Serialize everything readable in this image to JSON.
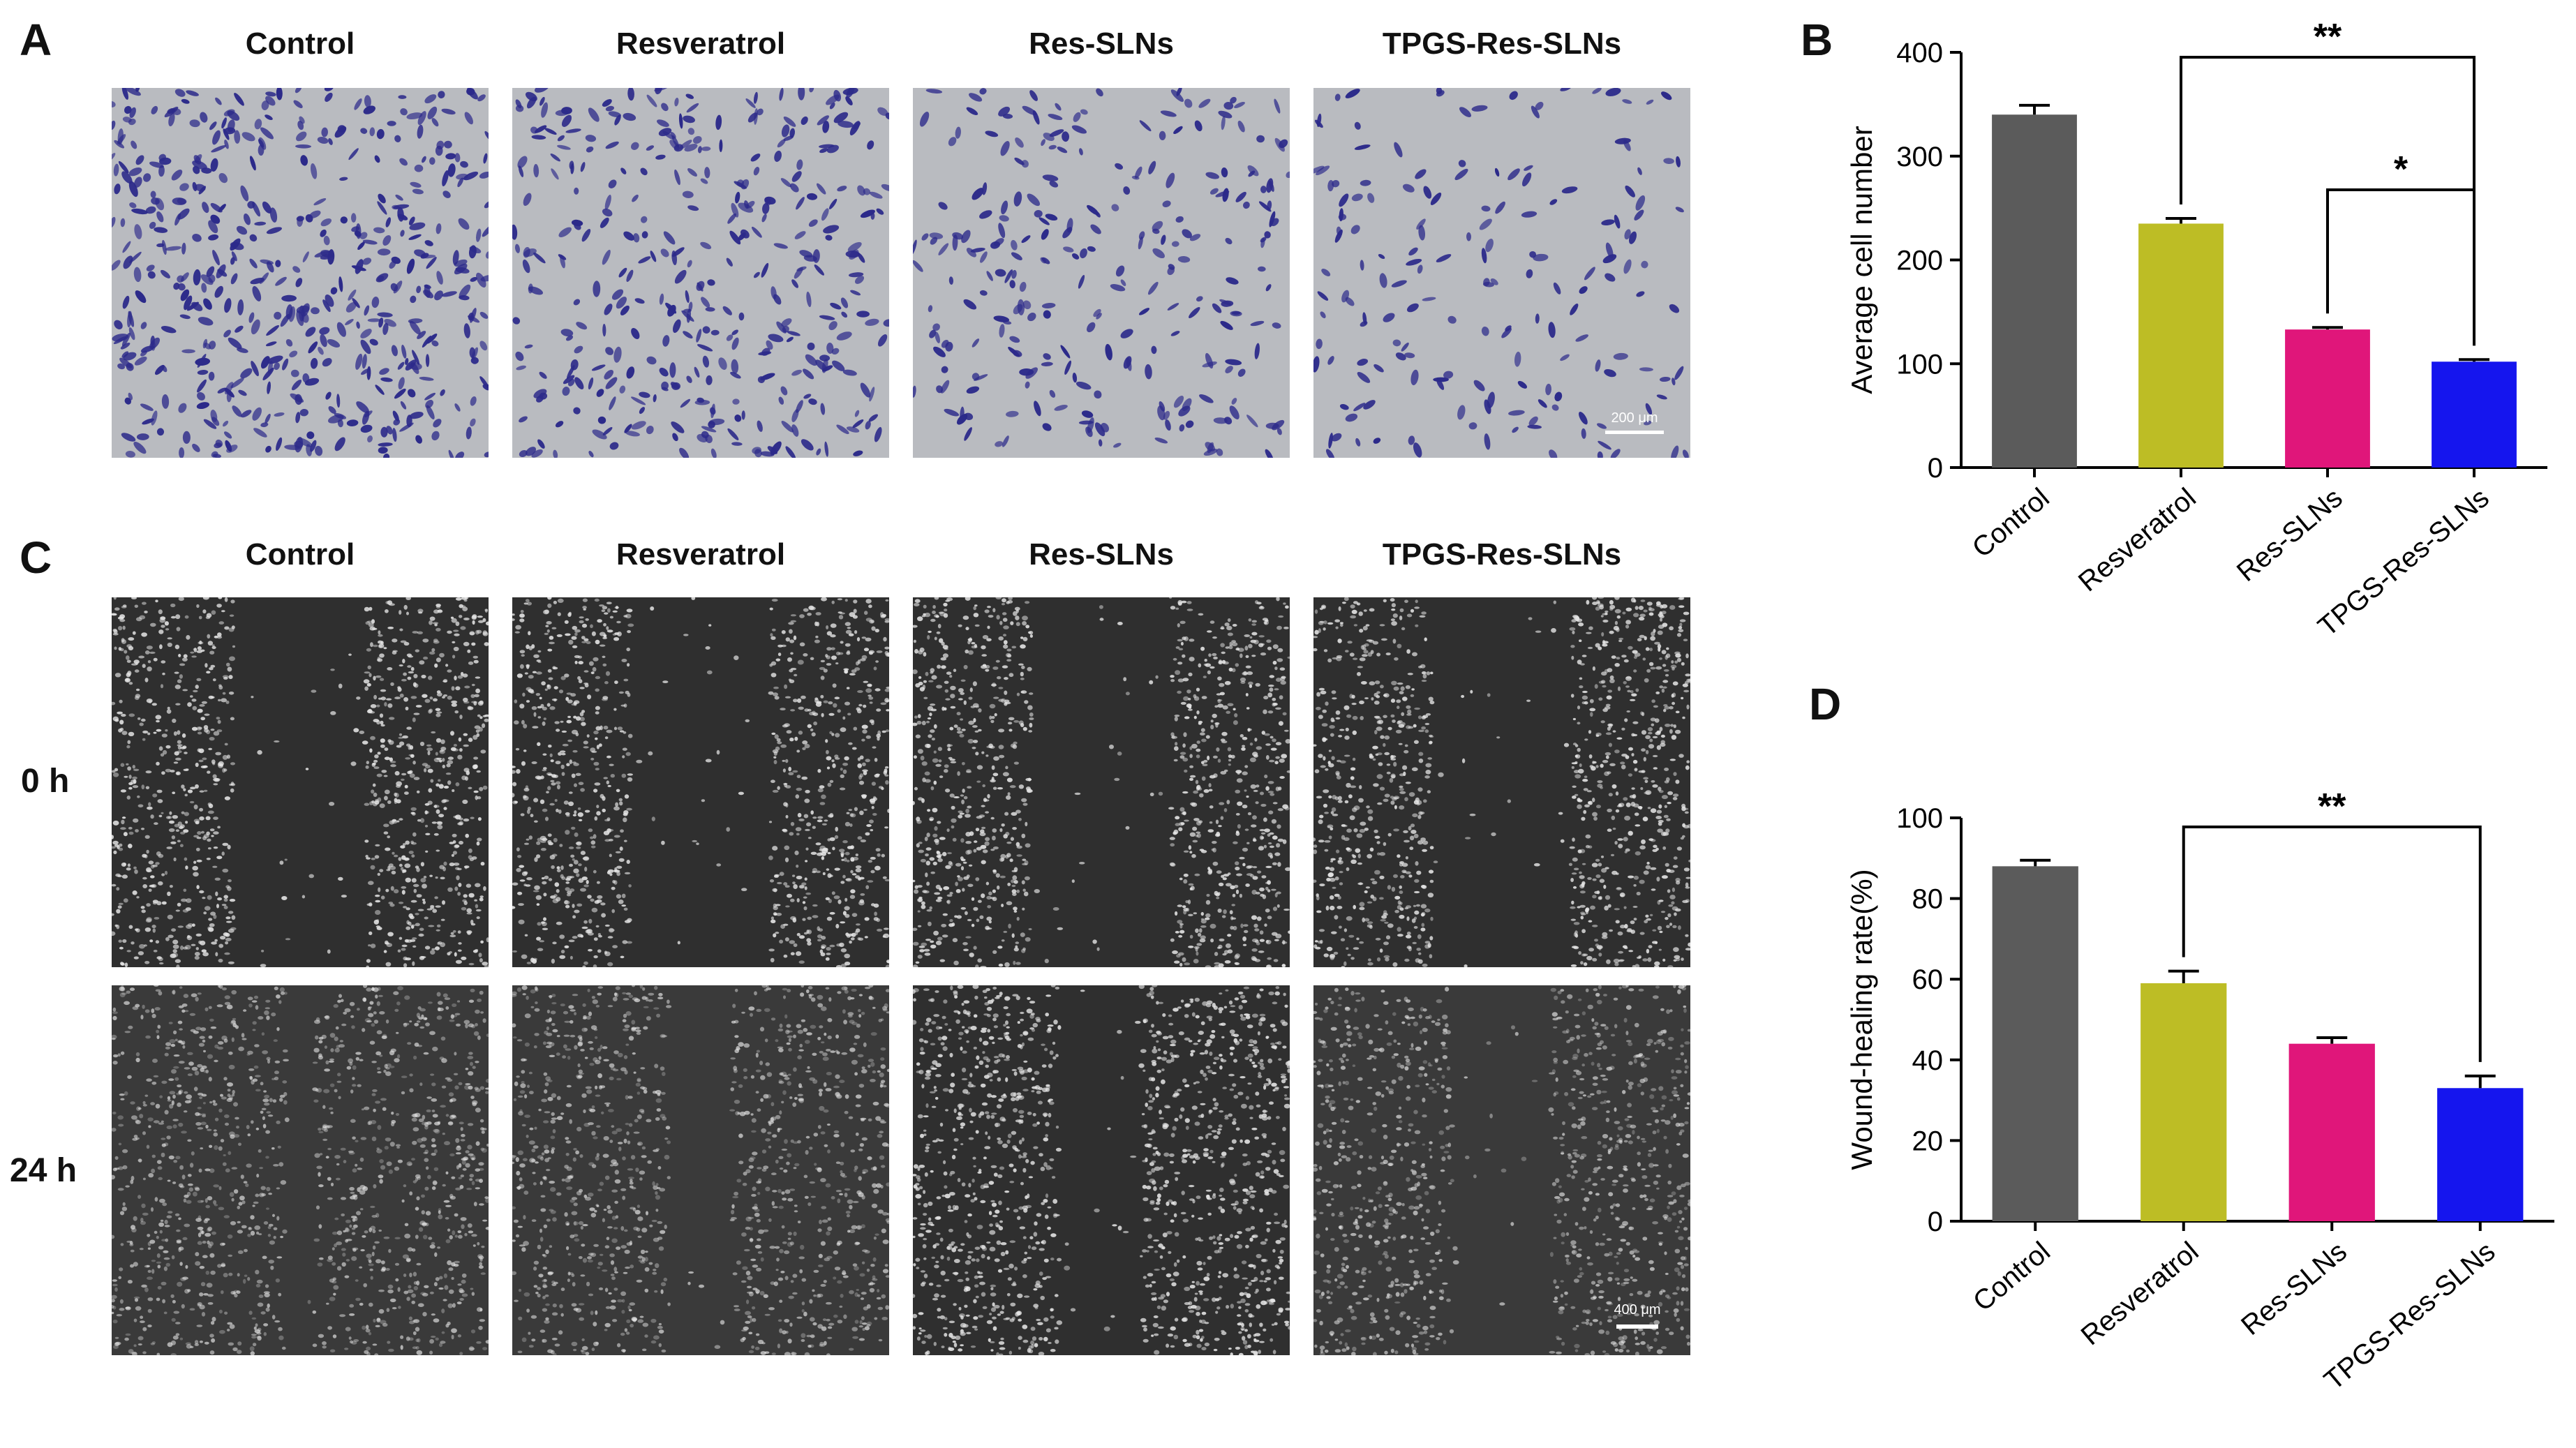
{
  "panels": {
    "a": {
      "letter": "A",
      "columns": [
        "Control",
        "Resveratrol",
        "Res-SLNs",
        "TPGS-Res-SLNs"
      ],
      "scale_bar": "200 μm"
    },
    "b": {
      "letter": "B"
    },
    "c": {
      "letter": "C",
      "columns": [
        "Control",
        "Resveratrol",
        "Res-SLNs",
        "TPGS-Res-SLNs"
      ],
      "rows": [
        "0 h",
        "24 h"
      ],
      "scale_bar": "400 μm"
    },
    "d": {
      "letter": "D"
    }
  },
  "colors": {
    "control": "#5b5b5b",
    "resveratrol": "#bdbd25",
    "res_slns": "#e0167a",
    "tpgs_res_slns": "#1515ee",
    "transwell_bg": "#b9bbc0",
    "transwell_cell": "#2c2a8a",
    "wound_bg": "#2f2f2f",
    "wound_cell": "#e6e6e6"
  },
  "chart_data": [
    {
      "id": "B",
      "type": "bar",
      "categories": [
        "Control",
        "Resveratrol",
        "Res-SLNs",
        "TPGS-Res-SLNs"
      ],
      "values": [
        340,
        235,
        133,
        102
      ],
      "errors": [
        9,
        5,
        2,
        2
      ],
      "ylabel": "Average cell number",
      "ylim": [
        0,
        400
      ],
      "yticks": [
        0,
        100,
        200,
        300,
        400
      ],
      "significance": [
        {
          "from": 1,
          "to": 3,
          "label": "**"
        },
        {
          "from": 2,
          "to": 3,
          "label": "*"
        }
      ]
    },
    {
      "id": "D",
      "type": "bar",
      "categories": [
        "Control",
        "Resveratrol",
        "Res-SLNs",
        "TPGS-Res-SLNs"
      ],
      "values": [
        88,
        59,
        44,
        33
      ],
      "errors": [
        1.5,
        3,
        1.5,
        3
      ],
      "ylabel": "Wound-healing rate(%)",
      "ylim": [
        0,
        100
      ],
      "yticks": [
        0,
        20,
        40,
        60,
        80,
        100
      ],
      "significance": [
        {
          "from": 1,
          "to": 3,
          "label": "**"
        }
      ]
    }
  ]
}
